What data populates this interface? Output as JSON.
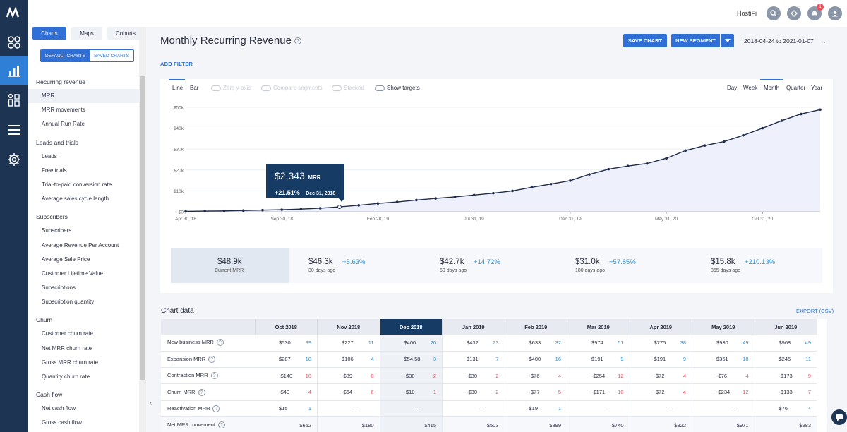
{
  "app": {
    "account": "HostiFi",
    "notification_count": "1"
  },
  "sidebar": {
    "tabs": [
      "Charts",
      "Maps",
      "Cohorts"
    ],
    "subtabs": [
      "DEFAULT CHARTS",
      "SAVED CHARTS"
    ],
    "groups": [
      {
        "title": "Recurring revenue",
        "items": [
          "MRR",
          "MRR movements",
          "Annual Run Rate"
        ]
      },
      {
        "title": "Leads and trials",
        "items": [
          "Leads",
          "Free trials",
          "Trial-to-paid conversion rate",
          "Average sales cycle length"
        ]
      },
      {
        "title": "Subscribers",
        "items": [
          "Subscribers",
          "Average Revenue Per Account",
          "Average Sale Price",
          "Customer Lifetime Value",
          "Subscriptions",
          "Subscription quantity"
        ]
      },
      {
        "title": "Churn",
        "items": [
          "Customer churn rate",
          "Net MRR churn rate",
          "Gross MRR churn rate",
          "Quantity churn rate"
        ]
      },
      {
        "title": "Cash flow",
        "items": [
          "Net cash flow",
          "Gross cash flow"
        ]
      }
    ]
  },
  "header": {
    "title": "Monthly Recurring Revenue",
    "save": "SAVE CHART",
    "segment": "NEW SEGMENT",
    "daterange": "2018-04-24 to 2021-01-07",
    "add_filter": "ADD FILTER"
  },
  "chart_options": {
    "types": [
      "Line",
      "Bar"
    ],
    "toggles": [
      "Zero y-axis",
      "Compare segments",
      "Stacked",
      "Show targets"
    ],
    "periods": [
      "Day",
      "Week",
      "Month",
      "Quarter",
      "Year"
    ],
    "active_type": "Line",
    "active_period": "Month"
  },
  "tooltip": {
    "value": "$2,343",
    "unit": "MRR",
    "change": "+21.51%",
    "date": "Dec 31, 2018"
  },
  "chart_data": {
    "type": "line",
    "ylim": [
      0,
      50000
    ],
    "yticks": [
      "$0",
      "$10k",
      "$20k",
      "$30k",
      "$40k",
      "$50k"
    ],
    "xticks": [
      "Apr 30, 18",
      "Sep 30, 18",
      "Feb 28, 19",
      "Jul 31, 19",
      "Dec 31, 19",
      "May 31, 20",
      "Oct 31, 20"
    ],
    "x": [
      "Apr 30, 18",
      "May 31, 18",
      "Jun 30, 18",
      "Jul 31, 18",
      "Aug 31, 18",
      "Sep 30, 18",
      "Oct 31, 18",
      "Nov 30, 18",
      "Dec 31, 18",
      "Jan 31, 19",
      "Feb 28, 19",
      "Mar 31, 19",
      "Apr 30, 19",
      "May 31, 19",
      "Jun 30, 19",
      "Jul 31, 19",
      "Aug 31, 19",
      "Sep 30, 19",
      "Oct 31, 19",
      "Nov 30, 19",
      "Dec 31, 19",
      "Jan 31, 20",
      "Feb 29, 20",
      "Mar 31, 20",
      "Apr 30, 20",
      "May 31, 20",
      "Jun 30, 20",
      "Jul 31, 20",
      "Aug 31, 20",
      "Sep 30, 20",
      "Oct 31, 20",
      "Nov 30, 20",
      "Dec 31, 20",
      "Jan 07, 21"
    ],
    "values": [
      200,
      300,
      400,
      600,
      800,
      1000,
      1300,
      1700,
      2343,
      3100,
      4000,
      4700,
      5600,
      6400,
      7100,
      8000,
      8900,
      10000,
      11700,
      13300,
      14900,
      17900,
      20400,
      21900,
      23100,
      25600,
      29300,
      31700,
      33600,
      36600,
      40000,
      43600,
      46800,
      48900
    ]
  },
  "summary": [
    {
      "value": "$48.9k",
      "label": "Current MRR",
      "delta": ""
    },
    {
      "value": "$46.3k",
      "label": "30 days ago",
      "delta": "+5.63%"
    },
    {
      "value": "$42.7k",
      "label": "60 days ago",
      "delta": "+14.72%"
    },
    {
      "value": "$31.0k",
      "label": "180 days ago",
      "delta": "+57.85%"
    },
    {
      "value": "$15.8k",
      "label": "365 days ago",
      "delta": "+210.13%"
    }
  ],
  "table": {
    "title": "Chart data",
    "export": "EXPORT (CSV)",
    "columns": [
      "Oct 2018",
      "Nov 2018",
      "Dec 2018",
      "Jan 2019",
      "Feb 2019",
      "Mar 2019",
      "Apr 2019",
      "May 2019",
      "Jun 2019"
    ],
    "rows": [
      {
        "name": "New business MRR",
        "cells": [
          [
            "$530",
            "39"
          ],
          [
            "$227",
            "11"
          ],
          [
            "$400",
            "20"
          ],
          [
            "$432",
            "23"
          ],
          [
            "$633",
            "32"
          ],
          [
            "$974",
            "51"
          ],
          [
            "$775",
            "38"
          ],
          [
            "$930",
            "49"
          ],
          [
            "$968",
            "49"
          ]
        ]
      },
      {
        "name": "Expansion MRR",
        "cells": [
          [
            "$287",
            "18"
          ],
          [
            "$106",
            "4"
          ],
          [
            "$54.58",
            "3"
          ],
          [
            "$131",
            "7"
          ],
          [
            "$400",
            "16"
          ],
          [
            "$191",
            "9"
          ],
          [
            "$191",
            "9"
          ],
          [
            "$351",
            "18"
          ],
          [
            "$245",
            "11"
          ]
        ]
      },
      {
        "name": "Contraction MRR",
        "cells": [
          [
            "-$140",
            "10"
          ],
          [
            "-$89",
            "8"
          ],
          [
            "-$30",
            "2"
          ],
          [
            "-$30",
            "2"
          ],
          [
            "-$76",
            "4"
          ],
          [
            "-$254",
            "12"
          ],
          [
            "-$72",
            "4"
          ],
          [
            "-$76",
            "4"
          ],
          [
            "-$173",
            "9"
          ]
        ]
      },
      {
        "name": "Churn MRR",
        "cells": [
          [
            "-$40",
            "4"
          ],
          [
            "-$64",
            "6"
          ],
          [
            "-$10",
            "1"
          ],
          [
            "-$30",
            "2"
          ],
          [
            "-$77",
            "5"
          ],
          [
            "-$171",
            "10"
          ],
          [
            "-$72",
            "4"
          ],
          [
            "-$234",
            "12"
          ],
          [
            "-$133",
            "7"
          ]
        ]
      },
      {
        "name": "Reactivation MRR",
        "cells": [
          [
            "$15",
            "1"
          ],
          [
            "—",
            ""
          ],
          [
            "—",
            ""
          ],
          [
            "—",
            ""
          ],
          [
            "$19",
            "1"
          ],
          [
            "—",
            ""
          ],
          [
            "—",
            ""
          ],
          [
            "—",
            ""
          ],
          [
            "$76",
            "4"
          ]
        ]
      },
      {
        "name": "Net MRR movement",
        "cells": [
          [
            "$652",
            ""
          ],
          [
            "$180",
            ""
          ],
          [
            "$415",
            ""
          ],
          [
            "$503",
            ""
          ],
          [
            "$899",
            ""
          ],
          [
            "$740",
            ""
          ],
          [
            "$822",
            ""
          ],
          [
            "$971",
            ""
          ],
          [
            "$983",
            ""
          ]
        ]
      }
    ]
  }
}
